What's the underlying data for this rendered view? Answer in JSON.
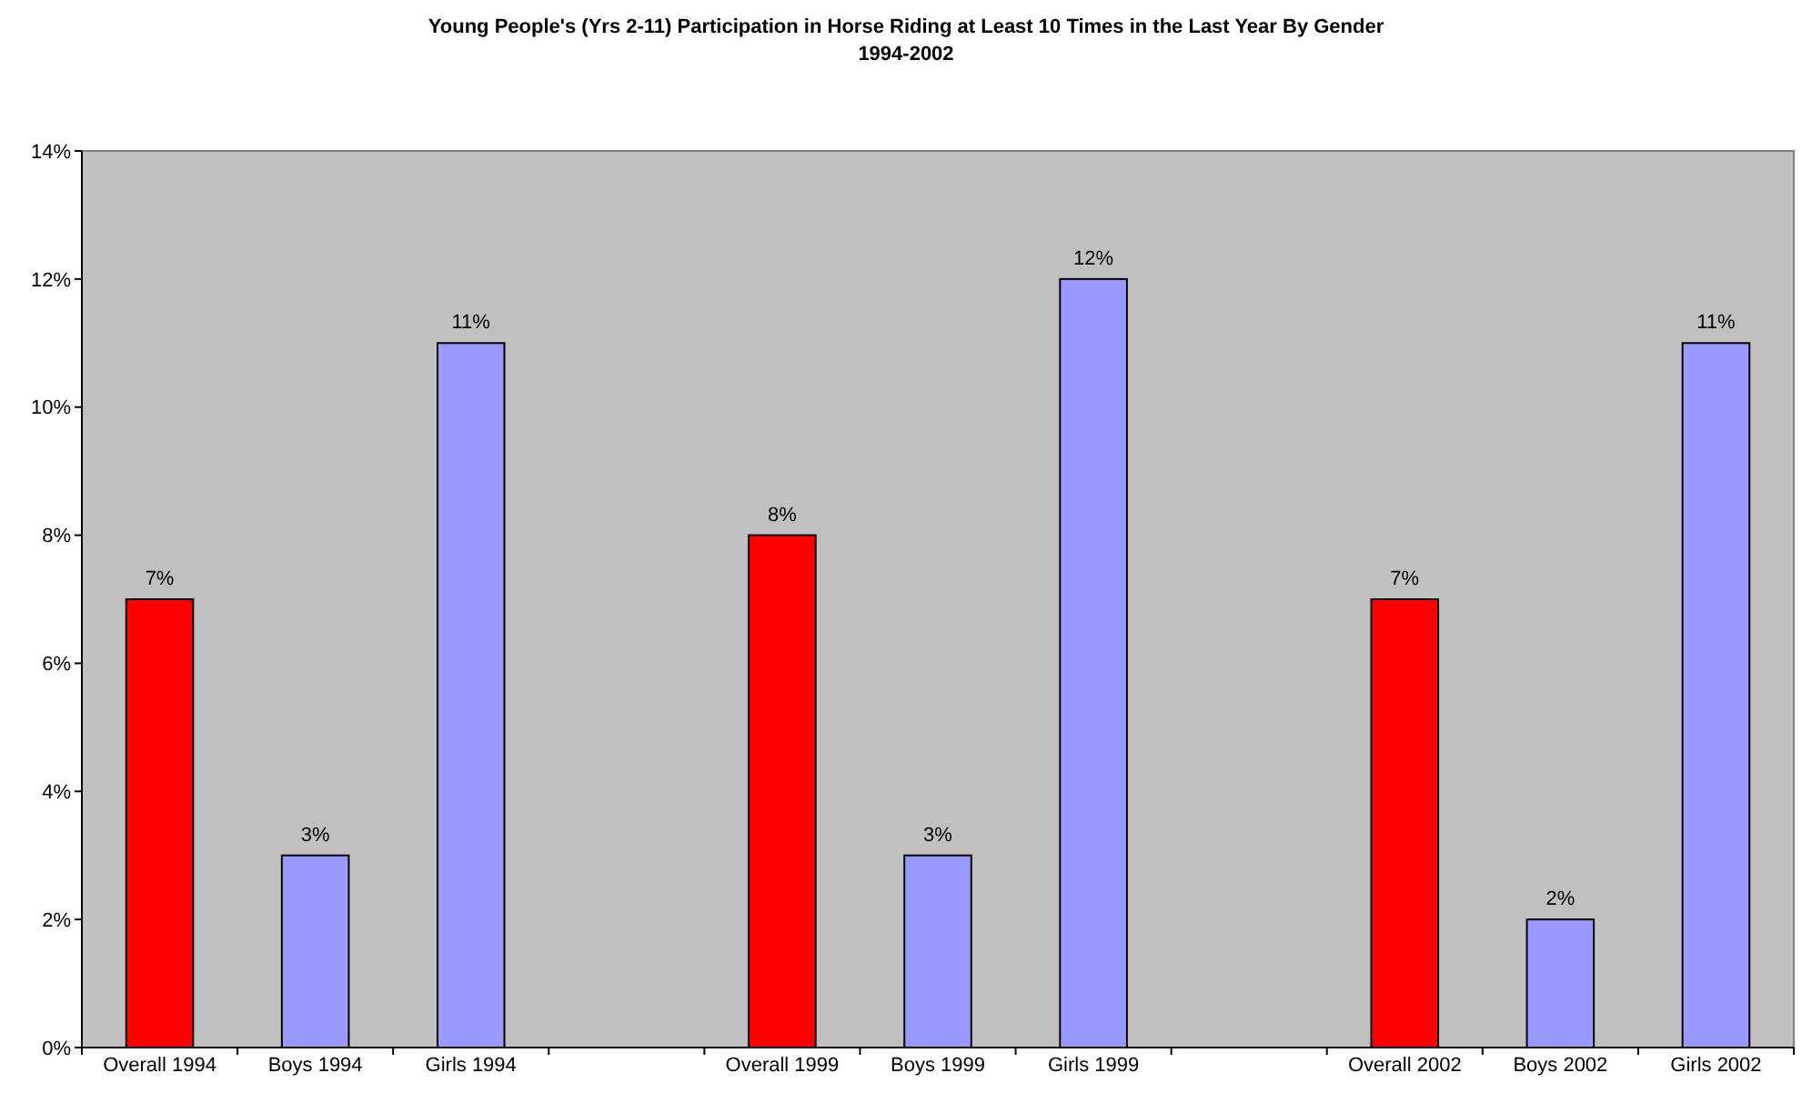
{
  "chart_data": {
    "type": "bar",
    "title": "Young People's (Yrs 2-11) Participation in Horse Riding at Least 10 Times in the Last Year By Gender",
    "subtitle": "1994-2002",
    "categories": [
      "Overall 1994",
      "Boys 1994",
      "Girls 1994",
      null,
      "Overall 1999",
      "Boys 1999",
      "Girls 1999",
      null,
      "Overall 2002",
      "Boys 2002",
      "Girls 2002"
    ],
    "values": [
      7,
      3,
      11,
      null,
      8,
      3,
      12,
      null,
      7,
      2,
      11
    ],
    "colors": [
      "#ff0000",
      "#9999ff",
      "#9999ff",
      null,
      "#ff0000",
      "#9999ff",
      "#9999ff",
      null,
      "#ff0000",
      "#9999ff",
      "#9999ff"
    ],
    "value_labels": [
      "7%",
      "3%",
      "11%",
      null,
      "8%",
      "3%",
      "12%",
      null,
      "7%",
      "2%",
      "11%"
    ],
    "ylim": [
      0,
      14
    ],
    "yticks": [
      {
        "value": 0,
        "label": "0%"
      },
      {
        "value": 2,
        "label": "2%"
      },
      {
        "value": 4,
        "label": "4%"
      },
      {
        "value": 6,
        "label": "6%"
      },
      {
        "value": 8,
        "label": "8%"
      },
      {
        "value": 10,
        "label": "10%"
      },
      {
        "value": 12,
        "label": "12%"
      },
      {
        "value": 14,
        "label": "14%"
      }
    ],
    "grid": false
  }
}
